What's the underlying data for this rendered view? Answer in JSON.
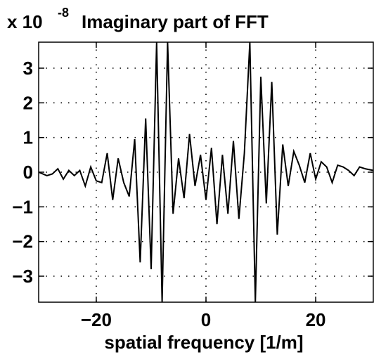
{
  "chart_data": {
    "type": "line",
    "title": "Imaginary part of FFT",
    "multiplier": {
      "base": "x 10",
      "exponent": "-8"
    },
    "xlabel": "spatial frequency [1/m]",
    "ylabel": "",
    "xlim": [
      -30.5,
      30.5
    ],
    "ylim": [
      -3.75,
      3.75
    ],
    "xticks": [
      -20,
      0,
      20
    ],
    "yticks": [
      -3,
      -2,
      -1,
      0,
      1,
      2,
      3
    ],
    "xtick_labels": [
      "−20",
      "0",
      "20"
    ],
    "ytick_labels": [
      "−3",
      "−2",
      "−1",
      "0",
      "1",
      "2",
      "3"
    ],
    "grid": true,
    "series": [
      {
        "color": "#000000",
        "x": [
          -30.5,
          -29,
          -28,
          -27,
          -26,
          -25,
          -24,
          -23,
          -22,
          -21,
          -20,
          -19,
          -18,
          -17,
          -16,
          -15,
          -14,
          -13,
          -12,
          -11,
          -10,
          -9,
          -8,
          -7,
          -6,
          -5,
          -4,
          -3,
          -2,
          -1,
          0,
          1,
          2,
          3,
          4,
          5,
          6,
          7,
          8,
          9,
          10,
          11,
          12,
          13,
          14,
          15,
          16,
          17,
          18,
          19,
          20,
          21,
          22,
          23,
          24,
          25,
          26,
          27,
          28,
          29,
          30.5
        ],
        "y": [
          0.0,
          -0.1,
          -0.05,
          0.1,
          -0.2,
          0.05,
          -0.1,
          0.05,
          -0.4,
          0.15,
          -0.25,
          -0.3,
          0.55,
          -0.8,
          0.4,
          -0.3,
          -0.7,
          0.95,
          -2.6,
          1.55,
          -2.8,
          3.75,
          -3.75,
          3.75,
          -1.2,
          0.4,
          -0.75,
          1.1,
          -0.4,
          0.5,
          -0.8,
          0.7,
          -1.5,
          0.5,
          -1.2,
          0.9,
          -1.35,
          0.55,
          3.75,
          -3.75,
          2.75,
          -0.9,
          2.6,
          -1.8,
          0.8,
          -0.4,
          0.6,
          0.2,
          -0.3,
          0.55,
          -0.2,
          0.3,
          0.15,
          -0.3,
          0.2,
          0.15,
          0.05,
          -0.1,
          0.15,
          0.1,
          0.05
        ]
      }
    ]
  }
}
